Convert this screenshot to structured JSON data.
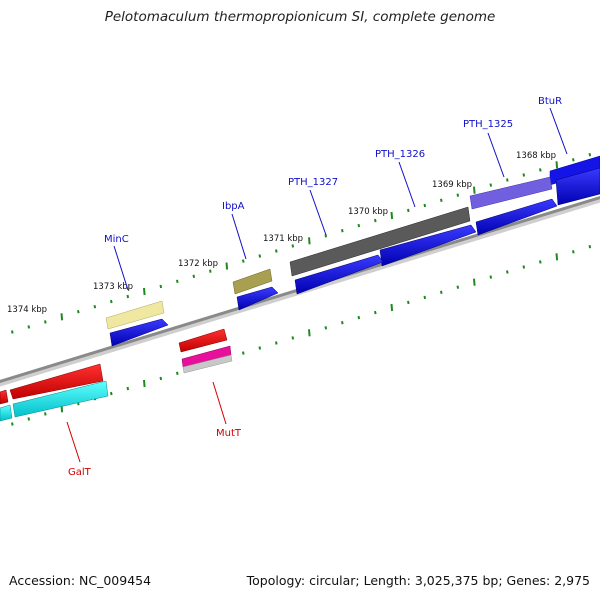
{
  "title": "Pelotomaculum thermopropionicum SI, complete genome",
  "footer": {
    "accession": "Accession: NC_009454",
    "topology": "Topology: circular; Length: 3,025,375 bp; Genes: 2,975"
  },
  "colors": {
    "forward_gene_label": "#1010c8",
    "reverse_gene_label": "#d00000",
    "tick": "#1e8a1e",
    "backbone": "#8a8a8a"
  },
  "kbp_ticks": [
    "1368 kbp",
    "1369 kbp",
    "1370 kbp",
    "1371 kbp",
    "1372 kbp",
    "1373 kbp",
    "1374 kbp"
  ],
  "genes": [
    {
      "name": "BtuR",
      "strand": "forward",
      "color": "#1010c8"
    },
    {
      "name": "PTH_1325",
      "strand": "forward",
      "color": "#1010c8"
    },
    {
      "name": "PTH_1326",
      "strand": "forward",
      "color": "#1010c8"
    },
    {
      "name": "PTH_1327",
      "strand": "forward",
      "color": "#1010c8"
    },
    {
      "name": "IbpA",
      "strand": "forward",
      "color": "#1010c8"
    },
    {
      "name": "MinC",
      "strand": "forward",
      "color": "#1010c8"
    },
    {
      "name": "MutT",
      "strand": "reverse",
      "color": "#d00000"
    },
    {
      "name": "GalT",
      "strand": "reverse",
      "color": "#d00000"
    }
  ]
}
